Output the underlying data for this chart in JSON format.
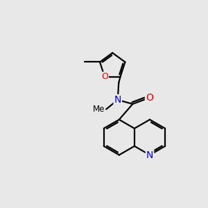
{
  "background_color": "#e8e8e8",
  "atom_colors": {
    "C": "#000000",
    "N": "#0000ee",
    "O": "#ee0000"
  },
  "bond_color": "#000000",
  "bond_width": 1.6,
  "font_size": 10,
  "figsize": [
    3.0,
    3.0
  ],
  "dpi": 100,
  "xlim": [
    0,
    10
  ],
  "ylim": [
    0,
    10
  ]
}
